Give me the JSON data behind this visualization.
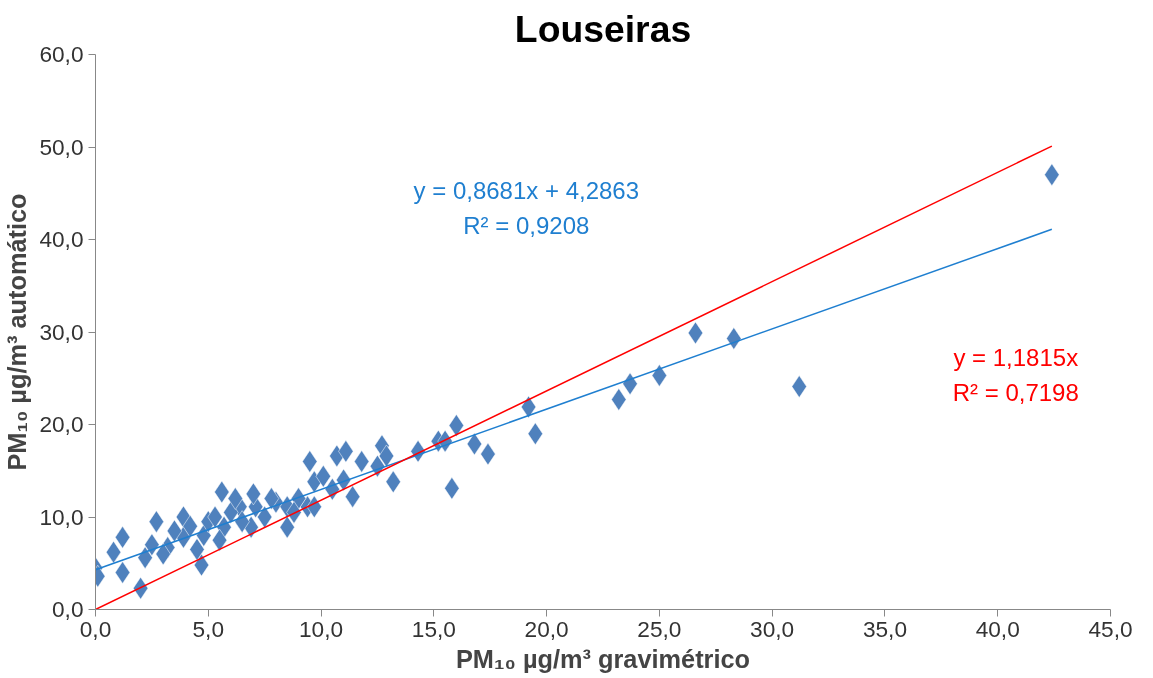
{
  "chart_data": {
    "type": "scatter",
    "title": "Louseiras",
    "xlabel": "PM₁₀ µg/m³ gravimétrico",
    "ylabel": "PM₁₀ µg/m³ automático",
    "xlim": [
      0,
      45
    ],
    "ylim": [
      0,
      60
    ],
    "xticks": [
      {
        "value": 0,
        "label": "0,0"
      },
      {
        "value": 5,
        "label": "5,0"
      },
      {
        "value": 10,
        "label": "10,0"
      },
      {
        "value": 15,
        "label": "15,0"
      },
      {
        "value": 20,
        "label": "20,0"
      },
      {
        "value": 25,
        "label": "25,0"
      },
      {
        "value": 30,
        "label": "30,0"
      },
      {
        "value": 35,
        "label": "35,0"
      },
      {
        "value": 40,
        "label": "40,0"
      },
      {
        "value": 45,
        "label": "45,0"
      }
    ],
    "yticks": [
      {
        "value": 0,
        "label": "0,0"
      },
      {
        "value": 10,
        "label": "10,0"
      },
      {
        "value": 20,
        "label": "20,0"
      },
      {
        "value": 30,
        "label": "30,0"
      },
      {
        "value": 40,
        "label": "40,0"
      },
      {
        "value": 50,
        "label": "50,0"
      },
      {
        "value": 60,
        "label": "60,0"
      }
    ],
    "grid": false,
    "series": [
      {
        "color": "#4f81bd",
        "marker": "diamond",
        "x": [
          0.0,
          0.1,
          1.2,
          1.2,
          0.8,
          2.0,
          2.7,
          2.2,
          3.2,
          3.9,
          3.9,
          4.8,
          4.7,
          5.0,
          5.6,
          5.7,
          6.4,
          7.1,
          6.9,
          8.0,
          8.5,
          8.5,
          9.4,
          9.5,
          9.7,
          9.7,
          10.1,
          10.7,
          11.1,
          11.4,
          11.8,
          12.7,
          12.9,
          13.2,
          14.3,
          15.2,
          15.5,
          15.8,
          16.0,
          16.8,
          17.4,
          19.2,
          19.5,
          23.2,
          23.7,
          25.0,
          26.6,
          28.3,
          31.2,
          42.4,
          3.5,
          4.2,
          5.3,
          6.0,
          6.5,
          7.5,
          7.8,
          9.0,
          10.5,
          11.0,
          12.5,
          8.8,
          3.0,
          4.5,
          5.5,
          2.5,
          6.2,
          7.0
        ],
        "values": [
          4.5,
          3.6,
          7.8,
          4.0,
          6.2,
          2.3,
          9.5,
          5.6,
          6.7,
          10.0,
          7.8,
          8.0,
          4.8,
          9.5,
          12.7,
          8.9,
          11.1,
          11.1,
          8.9,
          11.6,
          11.1,
          8.9,
          11.1,
          16.0,
          13.8,
          11.1,
          14.4,
          16.6,
          17.1,
          12.2,
          16.0,
          17.7,
          16.6,
          13.8,
          17.1,
          18.2,
          18.2,
          13.1,
          19.9,
          17.9,
          16.8,
          21.9,
          19.0,
          22.7,
          24.4,
          25.3,
          29.9,
          29.3,
          24.1,
          47.0,
          8.5,
          9.0,
          10.0,
          10.5,
          9.5,
          10.0,
          12.0,
          12.0,
          13.0,
          14.0,
          15.5,
          10.5,
          6.0,
          6.5,
          7.5,
          7.0,
          12.0,
          12.5
        ]
      },
      {
        "type": "line",
        "color": "#1f7fd0",
        "x": [
          0,
          42.4
        ],
        "values": [
          4.3,
          41.1
        ]
      },
      {
        "type": "line",
        "color": "#ff0000",
        "x": [
          0,
          42.4
        ],
        "values": [
          0,
          50.1
        ]
      }
    ],
    "annotations": [
      "y = 0,8681x + 4,2863\nR² = 0,9208",
      "y = 1,1815x\nR² = 0,7198"
    ]
  }
}
